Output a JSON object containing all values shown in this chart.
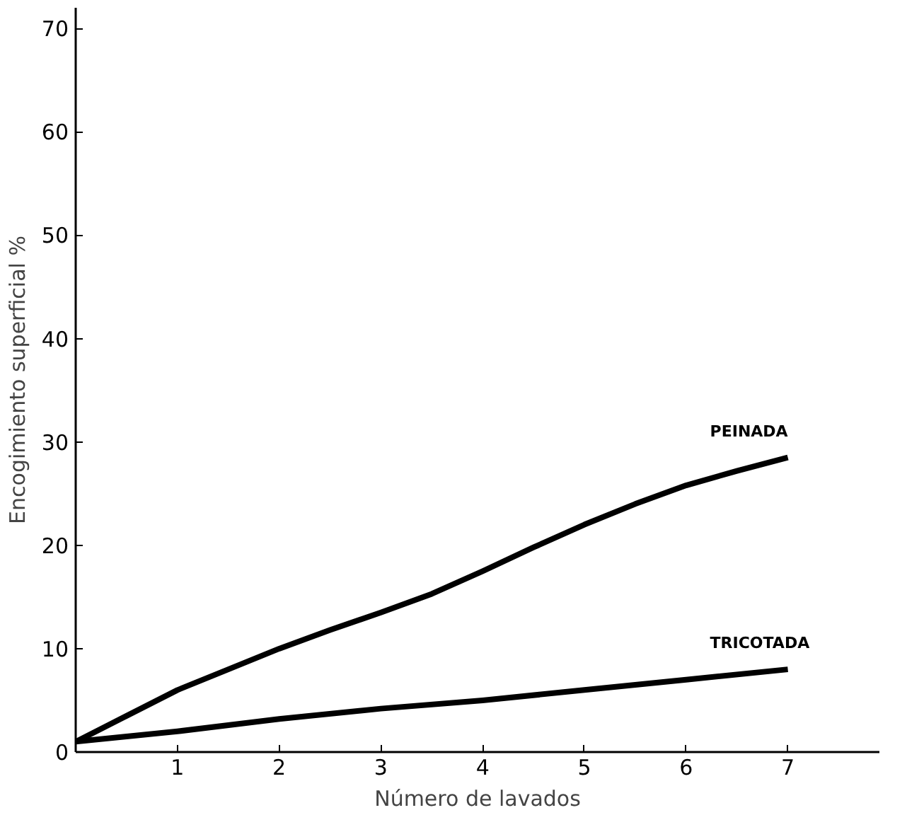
{
  "chart_data": {
    "type": "line",
    "xlabel": "Número de lavados",
    "ylabel": "Encogimiento superficial %",
    "xlim": [
      0,
      7.9
    ],
    "ylim": [
      0,
      72
    ],
    "xticks": [
      1,
      2,
      3,
      4,
      5,
      6,
      7
    ],
    "yticks": [
      0,
      10,
      20,
      30,
      40,
      50,
      60,
      70
    ],
    "grid": false,
    "legend": false,
    "line_style": "solid",
    "series": [
      {
        "name": "PEINADA",
        "color": "#000000",
        "x": [
          0,
          0.5,
          1,
          1.5,
          2,
          2.5,
          3,
          3.5,
          4,
          4.5,
          5,
          5.5,
          6,
          6.5,
          7
        ],
        "values": [
          1,
          3.5,
          6,
          8,
          10,
          11.8,
          13.5,
          15.3,
          17.5,
          19.8,
          22,
          24,
          25.8,
          27.2,
          28.5
        ]
      },
      {
        "name": "TRICOTADA",
        "color": "#000000",
        "x": [
          0,
          1,
          2,
          3,
          4,
          5,
          6,
          7
        ],
        "values": [
          1,
          2,
          3.2,
          4.2,
          5,
          6,
          7,
          8
        ]
      }
    ]
  }
}
